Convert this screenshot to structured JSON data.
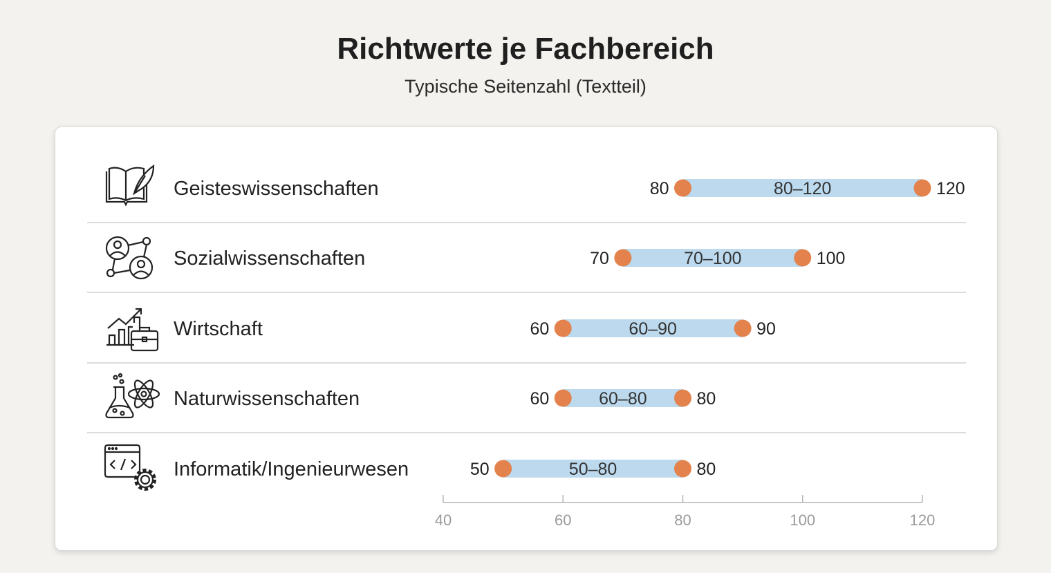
{
  "title": "Richtwerte je Fachbereich",
  "subtitle": "Typische Seitenzahl (Textteil)",
  "colors": {
    "bar": "#bcd9ee",
    "dot": "#e3824c",
    "divider": "#dcdcdc",
    "axis": "#b5b5b5"
  },
  "chart_data": {
    "type": "range-bar",
    "title": "Richtwerte je Fachbereich",
    "subtitle": "Typische Seitenzahl (Textteil)",
    "xlim": [
      40,
      120
    ],
    "xticks": [
      40,
      60,
      80,
      100,
      120
    ],
    "categories": [
      {
        "name": "Geisteswissenschaften",
        "icon": "book-quill-icon",
        "min": 80,
        "max": 120,
        "range_label": "80–120"
      },
      {
        "name": "Sozialwissenschaften",
        "icon": "people-network-icon",
        "min": 70,
        "max": 100,
        "range_label": "70–100"
      },
      {
        "name": "Wirtschaft",
        "icon": "chart-briefcase-icon",
        "min": 60,
        "max": 90,
        "range_label": "60–90"
      },
      {
        "name": "Naturwissenschaften",
        "icon": "flask-atom-icon",
        "min": 60,
        "max": 80,
        "range_label": "60–80"
      },
      {
        "name": "Informatik/Ingenieurwesen",
        "icon": "code-gear-icon",
        "min": 50,
        "max": 80,
        "range_label": "50–80"
      }
    ]
  }
}
